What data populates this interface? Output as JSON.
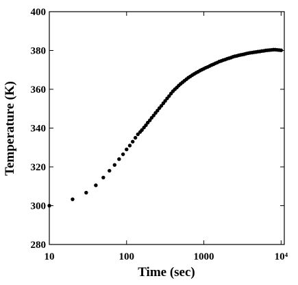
{
  "chart_data": {
    "type": "scatter",
    "xlabel": "Time (sec)",
    "ylabel": "Temperature (K)",
    "xscale": "log",
    "color": "#000000",
    "xlim": [
      10,
      11000
    ],
    "xticks": [
      10,
      100,
      1000,
      {
        "value": 10000,
        "label": "10⁴"
      }
    ],
    "ylim": [
      280,
      400
    ],
    "yticks": [
      280,
      300,
      320,
      340,
      360,
      380,
      400
    ],
    "x": [
      10,
      20,
      30,
      40,
      50,
      60,
      70,
      80,
      90,
      100,
      110,
      120,
      130,
      140,
      150,
      158,
      168,
      178,
      188,
      200,
      211,
      224,
      237,
      251,
      266,
      282,
      299,
      316,
      335,
      355,
      376,
      398,
      422,
      447,
      473,
      501,
      531,
      562,
      596,
      631,
      668,
      708,
      750,
      794,
      841,
      891,
      944,
      1000,
      1059,
      1122,
      1189,
      1259,
      1334,
      1413,
      1496,
      1585,
      1679,
      1778,
      1884,
      1995,
      2113,
      2239,
      2371,
      2512,
      2661,
      2818,
      2985,
      3162,
      3350,
      3548,
      3758,
      3981,
      4217,
      4467,
      4732,
      5012,
      5309,
      5623,
      5957,
      6310,
      6683,
      7079,
      7499,
      7943,
      8414,
      8913,
      9441,
      10000
    ],
    "y": [
      300,
      303.3,
      306.7,
      310.5,
      314.5,
      318,
      321,
      324,
      326.5,
      329,
      331,
      333,
      335,
      336.8,
      338,
      339,
      340.3,
      341.5,
      342.8,
      344,
      345.3,
      346.5,
      347.8,
      349,
      350.3,
      351.5,
      352.8,
      354,
      355.3,
      356.5,
      357.8,
      359,
      360,
      360.9,
      361.9,
      362.8,
      363.6,
      364.4,
      365.2,
      366,
      366.6,
      367.3,
      367.9,
      368.5,
      369,
      369.6,
      370.1,
      370.6,
      371.1,
      371.5,
      372,
      372.5,
      372.9,
      373.4,
      373.8,
      374.3,
      374.6,
      375,
      375.3,
      375.7,
      376,
      376.3,
      376.7,
      377,
      377.2,
      377.5,
      377.7,
      377.9,
      378.1,
      378.4,
      378.6,
      378.8,
      378.9,
      379.1,
      379.2,
      379.4,
      379.5,
      379.7,
      379.8,
      380,
      380.1,
      380.2,
      380.3,
      380.4,
      380.4,
      380.3,
      380.2,
      380.1
    ]
  }
}
